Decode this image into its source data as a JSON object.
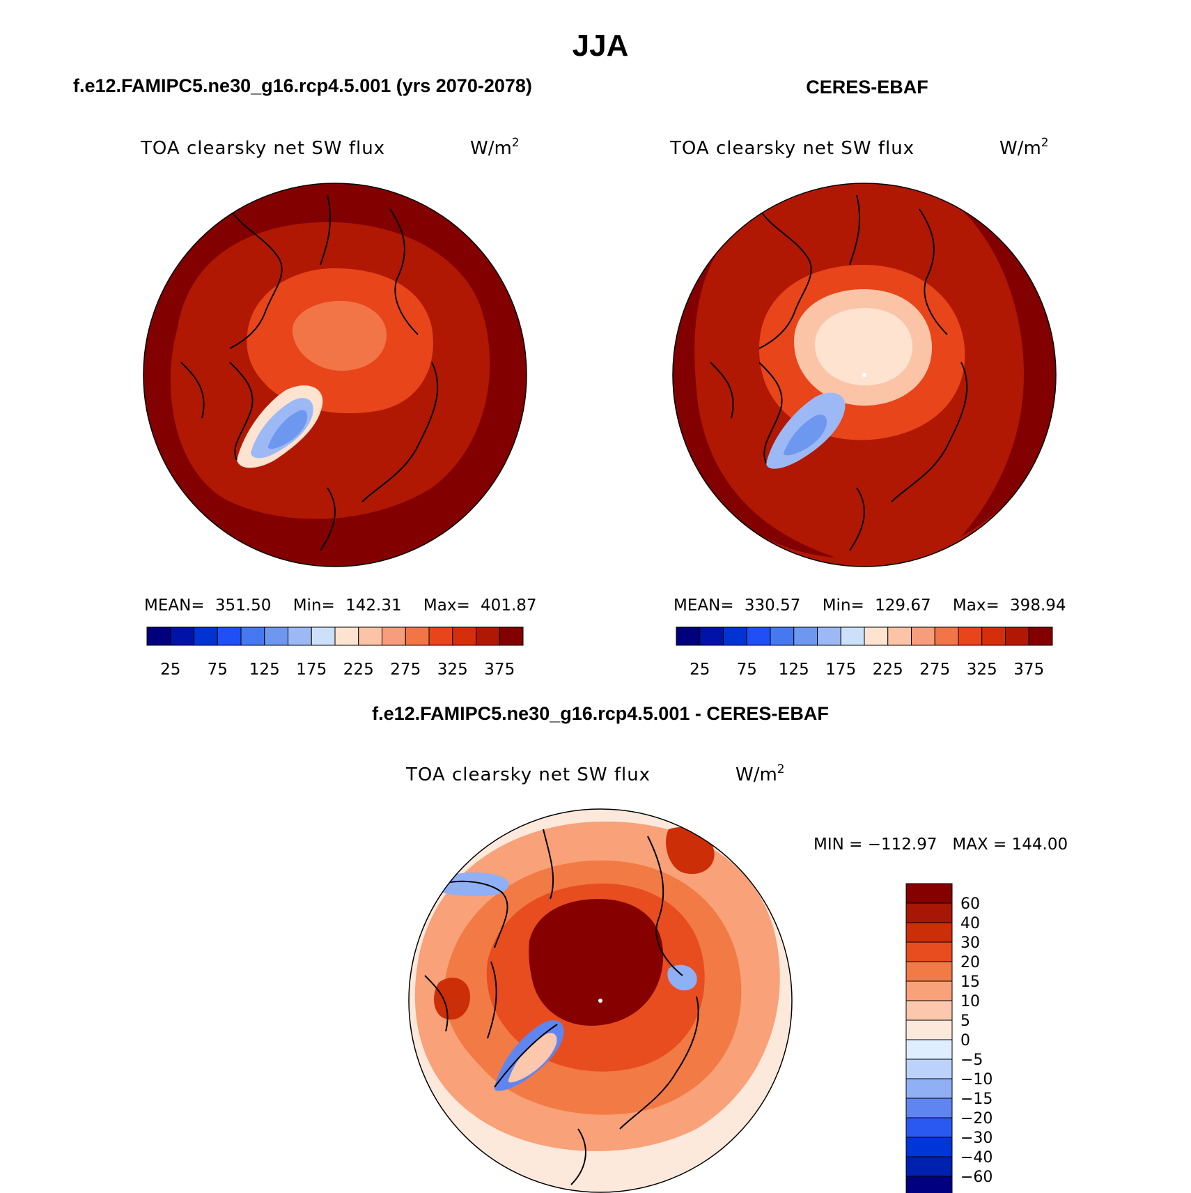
{
  "page": {
    "season": "JJA",
    "diff_title": "f.e12.FAMIPC5.ne30_g16.rcp4.5.001 - CERES-EBAF"
  },
  "units": {
    "base": "W/m",
    "superscript": "2"
  },
  "colors": {
    "abs_levels": [
      "#00007f",
      "#0012a8",
      "#0033d1",
      "#1f4ff5",
      "#4678f0",
      "#6e98ef",
      "#9db9f5",
      "#cde0fa",
      "#fde3d0",
      "#fbc4a7",
      "#f89d7c",
      "#f27548",
      "#e8451b",
      "#d42f0a",
      "#b01804",
      "#820000"
    ],
    "diff_levels": [
      "#000080",
      "#0020b0",
      "#0035d8",
      "#2a59f2",
      "#5f86f0",
      "#8fb0f5",
      "#bcd2fa",
      "#deeefe",
      "#fde9dc",
      "#fbc8ad",
      "#f9a178",
      "#f27a45",
      "#e84d1f",
      "#cc2e08",
      "#a61805",
      "#860000"
    ],
    "outline": "#000000",
    "pole": "#ffffff"
  },
  "panels": [
    {
      "id": "model",
      "case_title": "f.e12.FAMIPC5.ne30_g16.rcp4.5.001 (yrs 2070-2078)",
      "variable": "TOA clearsky net SW flux",
      "stats": {
        "mean_label": "MEAN=",
        "mean": "351.50",
        "min_label": "Min=",
        "min": "142.31",
        "max_label": "Max=",
        "max": "401.87"
      },
      "colorbar_ticks": [
        "25",
        "75",
        "125",
        "175",
        "225",
        "275",
        "325",
        "375"
      ]
    },
    {
      "id": "obs",
      "case_title": "CERES-EBAF",
      "variable": "TOA clearsky net SW flux",
      "stats": {
        "mean_label": "MEAN=",
        "mean": "330.57",
        "min_label": "Min=",
        "min": "129.67",
        "max_label": "Max=",
        "max": "398.94"
      },
      "colorbar_ticks": [
        "25",
        "75",
        "125",
        "175",
        "225",
        "275",
        "325",
        "375"
      ]
    },
    {
      "id": "diff",
      "variable": "TOA clearsky net SW flux",
      "stats_text": "MIN = −112.97   MAX = 144.00",
      "colorbar_ticks": [
        "60",
        "40",
        "30",
        "20",
        "15",
        "10",
        "5",
        "0",
        "−5",
        "−10",
        "−15",
        "−20",
        "−30",
        "−40",
        "−60"
      ]
    }
  ]
}
